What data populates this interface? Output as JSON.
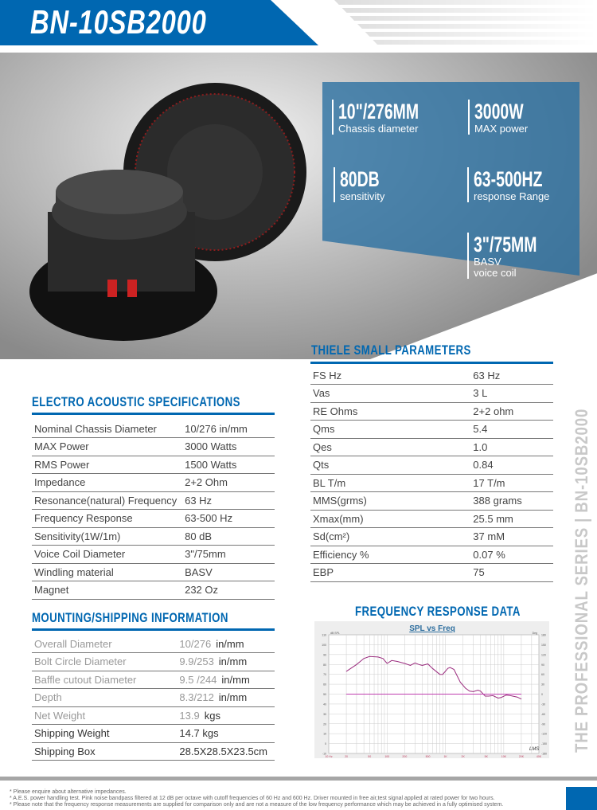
{
  "header": {
    "title": "BN-10SB2000"
  },
  "colors": {
    "brand_blue": "#0067b1",
    "panel_blue": "#2e6e9e",
    "curve": "#9b2d7f",
    "phase_line": "#c040b0"
  },
  "highlights": [
    {
      "value": "10\"/276MM",
      "label": "Chassis diameter"
    },
    {
      "value": "3000W",
      "label": "MAX power"
    },
    {
      "value": "80DB",
      "label": "sensitivity"
    },
    {
      "value": "63-500HZ",
      "label": "response Range"
    },
    {
      "value": "3\"/75MM",
      "label": "BASV",
      "label2": "voice coil"
    }
  ],
  "thiele": {
    "title": "THIELE SMALL PARAMETERS",
    "rows": [
      [
        "FS Hz",
        "63 Hz"
      ],
      [
        "Vas",
        "3  L"
      ],
      [
        "RE Ohms",
        "2+2 ohm"
      ],
      [
        "Qms",
        "5.4"
      ],
      [
        "Qes",
        "1.0"
      ],
      [
        "Qts",
        "0.84"
      ],
      [
        "BL T/m",
        "17 T/m"
      ],
      [
        "MMS(grms)",
        "388 grams"
      ],
      [
        "Xmax(mm)",
        "25.5 mm"
      ],
      [
        "Sd(cm²)",
        "37 mM"
      ],
      [
        "Efficiency %",
        "0.07 %"
      ],
      [
        "EBP",
        "75"
      ]
    ]
  },
  "electro": {
    "title": "ELECTRO ACOUSTIC SPECIFICATIONS",
    "rows": [
      [
        "Nominal Chassis Diameter",
        "10/276 in/mm"
      ],
      [
        "MAX Power",
        "3000 Watts"
      ],
      [
        "RMS Power",
        "1500 Watts"
      ],
      [
        "Impedance",
        "2+2 Ohm"
      ],
      [
        "Resonance(natural) Frequency",
        "63 Hz"
      ],
      [
        "Frequency Response",
        "63-500 Hz"
      ],
      [
        "Sensitivity(1W/1m)",
        "80 dB"
      ],
      [
        "Voice Coil Diameter",
        "3\"/75mm"
      ],
      [
        "Windling material",
        "BASV"
      ],
      [
        "Magnet",
        "232 Oz"
      ]
    ]
  },
  "mounting": {
    "title": "MOUNTING/SHIPPING INFORMATION",
    "rows": [
      [
        "Overall Diameter",
        "10/276",
        "in/mm"
      ],
      [
        "Bolt Circle Diameter",
        "9.9/253",
        "in/mm"
      ],
      [
        "Baffle cutout Diameter",
        "9.5 /244",
        "in/mm"
      ],
      [
        "Depth",
        "8.3/212",
        "in/mm"
      ],
      [
        "Net Weight",
        "13.9",
        "kgs"
      ],
      [
        "Shipping Weight",
        "14.7 kgs",
        ""
      ],
      [
        "Shipping Box",
        "28.5X28.5X23.5cm",
        ""
      ]
    ]
  },
  "side_text": "THE PROFESSIONAL SERIES | BN-10SB2000",
  "freq": {
    "title": "FREQUENCY RESPONSE DATA"
  },
  "chart_data": {
    "type": "line",
    "title": "SPL vs Freq",
    "ylabel": "dB SPL",
    "y2label": "Deg",
    "xscale": "log",
    "xlim": [
      10,
      40000
    ],
    "ylim": [
      -10,
      110
    ],
    "y2lim": [
      -180,
      180
    ],
    "xticks": [
      10,
      20,
      50,
      100,
      200,
      500,
      1000,
      2000,
      5000,
      10000,
      20000,
      40000
    ],
    "xtick_labels": [
      "10 Hz",
      "20",
      "50",
      "100",
      "200",
      "500",
      "1K",
      "2K",
      "5K",
      "10K",
      "20K",
      "40K"
    ],
    "yticks": [
      110,
      100,
      90,
      80,
      70,
      60,
      50,
      40,
      30,
      20,
      10,
      0,
      -10
    ],
    "y2ticks": [
      180,
      150,
      120,
      90,
      60,
      30,
      0,
      -30,
      -60,
      -90,
      -120,
      -150,
      -180
    ],
    "grid": true,
    "watermark": "LMS",
    "series": [
      {
        "x": [
          20,
          30,
          40,
          50,
          70,
          85,
          100,
          120,
          150,
          200,
          250,
          300,
          350,
          400,
          500,
          600,
          800,
          900,
          1100,
          1200,
          1400,
          1800,
          2200,
          2600,
          3000,
          3600,
          4000,
          4800,
          5500,
          6500,
          8000,
          9000,
          11000,
          13000,
          17000,
          20000
        ],
        "y": [
          73,
          80,
          86,
          88,
          87.5,
          86,
          81,
          84,
          83,
          81,
          79,
          81.5,
          80,
          79,
          80.5,
          76,
          70,
          70,
          76,
          77,
          75,
          62,
          56,
          53,
          52.5,
          54,
          53,
          48,
          48,
          48.5,
          46,
          46.5,
          49,
          48.5,
          47,
          45
        ]
      },
      {
        "x": [
          20,
          20000
        ],
        "y": [
          50,
          50
        ]
      }
    ]
  },
  "footer": {
    "notes": [
      "* Please enquire about alternative impedances.",
      "* A.E.S. power handling test. Pink noise bandpass filtered at 12 dB per octave with cutoff frequencies of 60 Hz and 600 Hz. Driver mounted in free air,test signal applied at rated power for two hours.",
      "* Please note that the frequency response measurements are supplied for comparison only and are not a measure of the low frequency performance which may be achieved in a fully optimised system."
    ]
  }
}
